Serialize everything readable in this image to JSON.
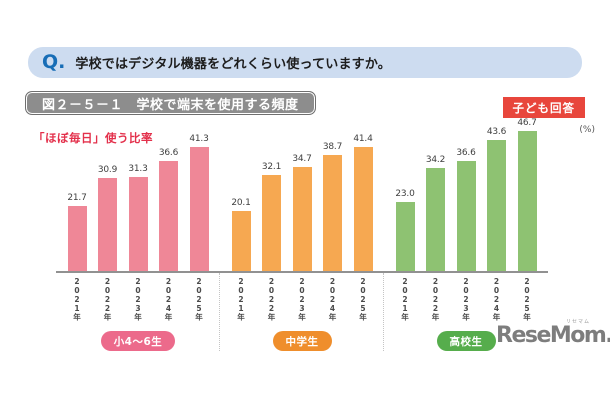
{
  "question": {
    "q_mark": "Q.",
    "text": "学校ではデジタル機器をどれくらい使っていますか。"
  },
  "figure": {
    "title": "図２－５－１　学校で端末を使用する頻度",
    "respondent_badge": "子ども回答",
    "metric_label": "「ほぼ毎日」使う比率",
    "unit_label": "(%)"
  },
  "logo": {
    "text": "ReseMom.",
    "ruby": "リセマム"
  },
  "colors": {
    "banner_bg": "#cddcf0",
    "q_blue": "#176db6",
    "title_bar_gray": "#8d8d8d",
    "badge_red": "#e8463c",
    "metric_red": "#e3304b",
    "axis_gray": "#919191"
  },
  "chart_data": {
    "type": "bar",
    "title": "学校で端末を使用する頻度（「ほぼ毎日」使う比率）",
    "xlabel": "",
    "ylabel": "%",
    "ylim": [
      0,
      50
    ],
    "grid": false,
    "legend_position": "none",
    "value_labels": true,
    "categories": [
      "2021年",
      "2022年",
      "2023年",
      "2024年",
      "2025年"
    ],
    "groups": [
      {
        "label": "小4～6生",
        "bar_color": "#ef8797",
        "pill_color": "#ec6a8b",
        "values": [
          21.7,
          30.9,
          31.3,
          36.6,
          41.3
        ]
      },
      {
        "label": "中学生",
        "bar_color": "#f6a851",
        "pill_color": "#ef8e2c",
        "values": [
          20.1,
          32.1,
          34.7,
          38.7,
          41.4
        ]
      },
      {
        "label": "高校生",
        "bar_color": "#8ec272",
        "pill_color": "#56ad4c",
        "values": [
          23.0,
          34.2,
          36.6,
          43.6,
          46.7
        ]
      }
    ]
  }
}
